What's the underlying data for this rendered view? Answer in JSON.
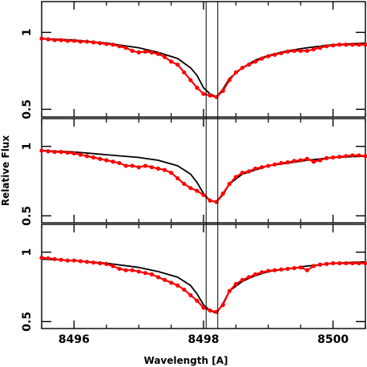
{
  "chart_data": {
    "type": "line",
    "xlabel": "Wavelength [A]",
    "ylabel": "Relative Flux",
    "xlim": [
      8495.5,
      8500.5
    ],
    "x_ticks": [
      8496,
      8498,
      8500
    ],
    "x_ticks_minor": [
      8495.5,
      8496.5,
      8497,
      8497.5,
      8498.5,
      8499,
      8499.5,
      8500.5
    ],
    "x_tick_labels": [
      "8496",
      "8498",
      "8500"
    ],
    "vertical_lines": [
      8498.04,
      8498.22
    ],
    "panels": [
      {
        "ylim": [
          0.45,
          1.2
        ],
        "y_ticks": [
          0.5,
          1
        ],
        "y_tick_labels": [
          "0.5",
          "1"
        ],
        "series": [
          {
            "role": "model",
            "color": "#000000",
            "x": [
              8495.5,
              8496.0,
              8496.5,
              8497.0,
              8497.3,
              8497.6,
              8497.8,
              8497.9,
              8498.0,
              8498.1,
              8498.2,
              8498.3,
              8498.4,
              8498.6,
              8498.8,
              8499.0,
              8499.3,
              8499.6,
              8499.8,
              8500.0,
              8500.5
            ],
            "y": [
              0.96,
              0.95,
              0.93,
              0.9,
              0.87,
              0.83,
              0.77,
              0.72,
              0.64,
              0.6,
              0.58,
              0.63,
              0.7,
              0.77,
              0.82,
              0.85,
              0.88,
              0.9,
              0.91,
              0.92,
              0.93
            ]
          },
          {
            "role": "observed",
            "color": "#ff0000",
            "x": [
              8495.5,
              8495.6,
              8495.7,
              8495.8,
              8495.9,
              8496.0,
              8496.1,
              8496.2,
              8496.3,
              8496.4,
              8496.5,
              8496.6,
              8496.7,
              8496.8,
              8496.9,
              8497.0,
              8497.1,
              8497.2,
              8497.3,
              8497.4,
              8497.5,
              8497.6,
              8497.7,
              8497.8,
              8497.9,
              8498.0,
              8498.1,
              8498.2,
              8498.3,
              8498.4,
              8498.5,
              8498.6,
              8498.7,
              8498.8,
              8498.9,
              8499.0,
              8499.1,
              8499.2,
              8499.3,
              8499.4,
              8499.5,
              8499.6,
              8499.7,
              8499.8,
              8499.9,
              8500.0,
              8500.1,
              8500.2,
              8500.3,
              8500.4,
              8500.5
            ],
            "y": [
              0.96,
              0.955,
              0.95,
              0.95,
              0.945,
              0.945,
              0.94,
              0.94,
              0.935,
              0.93,
              0.925,
              0.92,
              0.91,
              0.9,
              0.88,
              0.87,
              0.875,
              0.87,
              0.86,
              0.84,
              0.81,
              0.79,
              0.74,
              0.69,
              0.64,
              0.6,
              0.59,
              0.58,
              0.62,
              0.69,
              0.74,
              0.77,
              0.79,
              0.81,
              0.83,
              0.845,
              0.855,
              0.865,
              0.875,
              0.88,
              0.88,
              0.88,
              0.89,
              0.9,
              0.91,
              0.915,
              0.92,
              0.92,
              0.92,
              0.92,
              0.92
            ]
          }
        ]
      },
      {
        "ylim": [
          0.45,
          1.2
        ],
        "y_ticks": [
          0.5,
          1
        ],
        "y_tick_labels": [
          "0.5",
          "1"
        ],
        "series": [
          {
            "role": "model",
            "color": "#000000",
            "x": [
              8495.5,
              8496.0,
              8496.5,
              8497.0,
              8497.3,
              8497.6,
              8497.8,
              8497.9,
              8498.0,
              8498.1,
              8498.2,
              8498.3,
              8498.4,
              8498.6,
              8498.8,
              8499.0,
              8499.3,
              8499.6,
              8499.8,
              8500.0,
              8500.5
            ],
            "y": [
              0.97,
              0.96,
              0.94,
              0.92,
              0.9,
              0.86,
              0.8,
              0.74,
              0.66,
              0.61,
              0.6,
              0.65,
              0.73,
              0.8,
              0.83,
              0.86,
              0.88,
              0.9,
              0.91,
              0.92,
              0.93
            ]
          },
          {
            "role": "observed",
            "color": "#ff0000",
            "x": [
              8495.5,
              8495.6,
              8495.7,
              8495.8,
              8495.9,
              8496.0,
              8496.1,
              8496.2,
              8496.3,
              8496.4,
              8496.5,
              8496.6,
              8496.7,
              8496.8,
              8496.9,
              8497.0,
              8497.1,
              8497.2,
              8497.3,
              8497.4,
              8497.5,
              8497.6,
              8497.7,
              8497.8,
              8497.9,
              8498.0,
              8498.1,
              8498.2,
              8498.3,
              8498.4,
              8498.5,
              8498.6,
              8498.7,
              8498.8,
              8498.9,
              8499.0,
              8499.1,
              8499.2,
              8499.3,
              8499.4,
              8499.5,
              8499.6,
              8499.7,
              8499.8,
              8499.9,
              8500.0,
              8500.1,
              8500.2,
              8500.3,
              8500.4,
              8500.5
            ],
            "y": [
              0.97,
              0.965,
              0.96,
              0.96,
              0.955,
              0.95,
              0.94,
              0.93,
              0.92,
              0.91,
              0.9,
              0.89,
              0.88,
              0.86,
              0.86,
              0.85,
              0.86,
              0.85,
              0.84,
              0.83,
              0.81,
              0.77,
              0.73,
              0.7,
              0.68,
              0.65,
              0.61,
              0.6,
              0.66,
              0.73,
              0.78,
              0.81,
              0.82,
              0.84,
              0.85,
              0.86,
              0.87,
              0.88,
              0.885,
              0.895,
              0.9,
              0.91,
              0.89,
              0.9,
              0.915,
              0.92,
              0.925,
              0.93,
              0.935,
              0.935,
              0.93
            ]
          }
        ]
      },
      {
        "ylim": [
          0.45,
          1.2
        ],
        "y_ticks": [
          0.5,
          1
        ],
        "y_tick_labels": [
          "0.5",
          "1"
        ],
        "series": [
          {
            "role": "model",
            "color": "#000000",
            "x": [
              8495.5,
              8496.0,
              8496.5,
              8497.0,
              8497.3,
              8497.6,
              8497.8,
              8497.9,
              8498.0,
              8498.1,
              8498.2,
              8498.3,
              8498.4,
              8498.6,
              8498.8,
              8499.0,
              8499.3,
              8499.6,
              8499.8,
              8500.0,
              8500.5
            ],
            "y": [
              0.95,
              0.94,
              0.92,
              0.89,
              0.86,
              0.82,
              0.76,
              0.7,
              0.62,
              0.58,
              0.56,
              0.63,
              0.72,
              0.79,
              0.83,
              0.86,
              0.88,
              0.9,
              0.91,
              0.92,
              0.93
            ]
          },
          {
            "role": "observed",
            "color": "#ff0000",
            "x": [
              8495.5,
              8495.6,
              8495.7,
              8495.8,
              8495.9,
              8496.0,
              8496.1,
              8496.2,
              8496.3,
              8496.4,
              8496.5,
              8496.6,
              8496.7,
              8496.8,
              8496.9,
              8497.0,
              8497.1,
              8497.2,
              8497.3,
              8497.4,
              8497.5,
              8497.6,
              8497.7,
              8497.8,
              8497.9,
              8498.0,
              8498.1,
              8498.2,
              8498.3,
              8498.4,
              8498.5,
              8498.6,
              8498.7,
              8498.8,
              8498.9,
              8499.0,
              8499.1,
              8499.2,
              8499.3,
              8499.4,
              8499.5,
              8499.6,
              8499.7,
              8499.8,
              8499.9,
              8500.0,
              8500.1,
              8500.2,
              8500.3,
              8500.4,
              8500.5
            ],
            "y": [
              0.96,
              0.955,
              0.95,
              0.945,
              0.94,
              0.94,
              0.935,
              0.93,
              0.925,
              0.92,
              0.915,
              0.9,
              0.88,
              0.87,
              0.87,
              0.86,
              0.85,
              0.84,
              0.82,
              0.8,
              0.78,
              0.76,
              0.73,
              0.69,
              0.65,
              0.6,
              0.58,
              0.57,
              0.62,
              0.72,
              0.77,
              0.8,
              0.82,
              0.84,
              0.855,
              0.865,
              0.87,
              0.875,
              0.88,
              0.885,
              0.89,
              0.87,
              0.9,
              0.91,
              0.915,
              0.92,
              0.92,
              0.92,
              0.92,
              0.92,
              0.92
            ]
          }
        ]
      }
    ]
  }
}
